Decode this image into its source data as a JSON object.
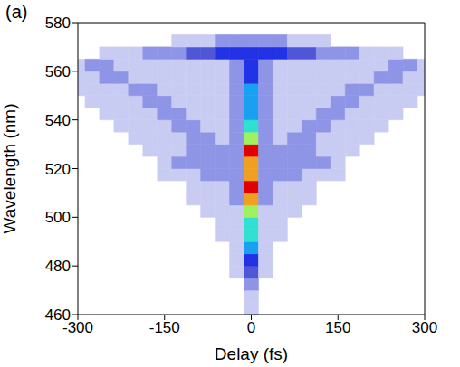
{
  "chart_data": {
    "type": "heatmap",
    "title": "(a)",
    "x_label": "Delay (fs)",
    "y_label": "Wavelength (nm)",
    "x": [
      -300,
      -275,
      -250,
      -225,
      -200,
      -175,
      -150,
      -125,
      -100,
      -75,
      -50,
      -25,
      0,
      25,
      50,
      75,
      100,
      125,
      150,
      175,
      200,
      225,
      250,
      275,
      300
    ],
    "y": [
      462.5,
      467.5,
      472.5,
      477.5,
      482.5,
      487.5,
      492.5,
      497.5,
      502.5,
      507.5,
      512.5,
      517.5,
      522.5,
      527.5,
      532.5,
      537.5,
      542.5,
      547.5,
      552.5,
      557.5,
      562.5,
      567.5,
      572.5,
      577.5
    ],
    "values": [
      [
        0,
        0,
        0,
        0,
        0,
        0,
        0,
        0,
        0,
        0,
        0,
        0,
        1,
        0,
        0,
        0,
        0,
        0,
        0,
        0,
        0,
        0,
        0,
        0,
        0
      ],
      [
        0,
        0,
        0,
        0,
        0,
        0,
        0,
        0,
        0,
        0,
        0,
        0,
        1,
        0,
        0,
        0,
        0,
        0,
        0,
        0,
        0,
        0,
        0,
        0,
        0
      ],
      [
        0,
        0,
        0,
        0,
        0,
        0,
        0,
        0,
        0,
        0,
        0,
        0,
        2,
        0,
        0,
        0,
        0,
        0,
        0,
        0,
        0,
        0,
        0,
        0,
        0
      ],
      [
        0,
        0,
        0,
        0,
        0,
        0,
        0,
        0,
        0,
        0,
        0,
        1,
        3,
        1,
        0,
        0,
        0,
        0,
        0,
        0,
        0,
        0,
        0,
        0,
        0
      ],
      [
        0,
        0,
        0,
        0,
        0,
        0,
        0,
        0,
        0,
        0,
        0,
        1,
        4,
        1,
        0,
        0,
        0,
        0,
        0,
        0,
        0,
        0,
        0,
        0,
        0
      ],
      [
        0,
        0,
        0,
        0,
        0,
        0,
        0,
        0,
        0,
        0,
        0,
        1,
        5,
        1,
        0,
        0,
        0,
        0,
        0,
        0,
        0,
        0,
        0,
        0,
        0
      ],
      [
        0,
        0,
        0,
        0,
        0,
        0,
        0,
        0,
        0,
        0,
        1,
        1,
        6,
        1,
        1,
        0,
        0,
        0,
        0,
        0,
        0,
        0,
        0,
        0,
        0
      ],
      [
        0,
        0,
        0,
        0,
        0,
        0,
        0,
        0,
        0,
        0,
        1,
        1,
        6,
        1,
        1,
        0,
        0,
        0,
        0,
        0,
        0,
        0,
        0,
        0,
        0
      ],
      [
        0,
        0,
        0,
        0,
        0,
        0,
        0,
        0,
        0,
        1,
        1,
        1,
        7,
        1,
        1,
        1,
        0,
        0,
        0,
        0,
        0,
        0,
        0,
        0,
        0
      ],
      [
        0,
        0,
        0,
        0,
        0,
        0,
        0,
        0,
        1,
        1,
        1,
        2,
        8,
        2,
        1,
        1,
        1,
        0,
        0,
        0,
        0,
        0,
        0,
        0,
        0
      ],
      [
        0,
        0,
        0,
        0,
        0,
        0,
        0,
        0,
        1,
        1,
        1,
        2,
        9,
        2,
        1,
        1,
        1,
        0,
        0,
        0,
        0,
        0,
        0,
        0,
        0
      ],
      [
        0,
        0,
        0,
        0,
        0,
        0,
        1,
        1,
        1,
        2,
        2,
        2,
        8,
        2,
        2,
        2,
        1,
        1,
        1,
        0,
        0,
        0,
        0,
        0,
        0
      ],
      [
        0,
        0,
        0,
        0,
        0,
        0,
        1,
        2,
        2,
        2,
        2,
        2,
        8,
        2,
        2,
        2,
        2,
        2,
        1,
        0,
        0,
        0,
        0,
        0,
        0
      ],
      [
        0,
        0,
        0,
        0,
        0,
        1,
        1,
        1,
        2,
        2,
        2,
        2,
        9,
        2,
        2,
        2,
        2,
        1,
        1,
        1,
        0,
        0,
        0,
        0,
        0
      ],
      [
        0,
        0,
        0,
        0,
        1,
        1,
        1,
        1,
        2,
        2,
        1,
        2,
        7,
        2,
        1,
        2,
        2,
        1,
        1,
        1,
        1,
        0,
        0,
        0,
        0
      ],
      [
        0,
        0,
        0,
        1,
        1,
        1,
        1,
        2,
        2,
        1,
        1,
        2,
        6,
        2,
        1,
        1,
        2,
        2,
        1,
        1,
        1,
        1,
        0,
        0,
        0
      ],
      [
        0,
        0,
        1,
        1,
        1,
        1,
        2,
        2,
        1,
        1,
        1,
        2,
        5,
        2,
        1,
        1,
        1,
        2,
        2,
        1,
        1,
        1,
        1,
        0,
        0
      ],
      [
        0,
        1,
        1,
        1,
        1,
        2,
        2,
        1,
        1,
        1,
        1,
        2,
        5,
        2,
        1,
        1,
        1,
        1,
        2,
        2,
        1,
        1,
        1,
        1,
        0
      ],
      [
        1,
        1,
        1,
        1,
        2,
        2,
        1,
        1,
        1,
        1,
        1,
        2,
        5,
        2,
        1,
        1,
        1,
        1,
        1,
        2,
        2,
        1,
        1,
        1,
        1
      ],
      [
        1,
        1,
        2,
        2,
        1,
        1,
        1,
        1,
        1,
        1,
        1,
        2,
        4,
        2,
        1,
        1,
        1,
        1,
        1,
        1,
        1,
        2,
        2,
        1,
        1
      ],
      [
        1,
        2,
        2,
        1,
        1,
        1,
        1,
        1,
        1,
        1,
        1,
        2,
        4,
        2,
        1,
        1,
        1,
        1,
        1,
        1,
        1,
        1,
        2,
        2,
        1
      ],
      [
        0,
        0,
        1,
        1,
        1,
        2,
        2,
        2,
        3,
        3,
        4,
        4,
        4,
        4,
        4,
        3,
        3,
        2,
        2,
        2,
        1,
        1,
        1,
        0,
        0
      ],
      [
        0,
        0,
        0,
        0,
        0,
        0,
        0,
        1,
        1,
        1,
        2,
        2,
        2,
        2,
        2,
        1,
        1,
        1,
        0,
        0,
        0,
        0,
        0,
        0,
        0
      ],
      [
        0,
        0,
        0,
        0,
        0,
        0,
        0,
        0,
        0,
        0,
        0,
        0,
        0,
        0,
        0,
        0,
        0,
        0,
        0,
        0,
        0,
        0,
        0,
        0,
        0
      ]
    ],
    "zlim": [
      0,
      9
    ],
    "xlim": [
      -300,
      300
    ],
    "ylim": [
      460,
      580
    ],
    "xticks": [
      -300,
      -150,
      0,
      150,
      300
    ],
    "yticks": [
      460,
      480,
      500,
      520,
      540,
      560,
      580
    ]
  }
}
